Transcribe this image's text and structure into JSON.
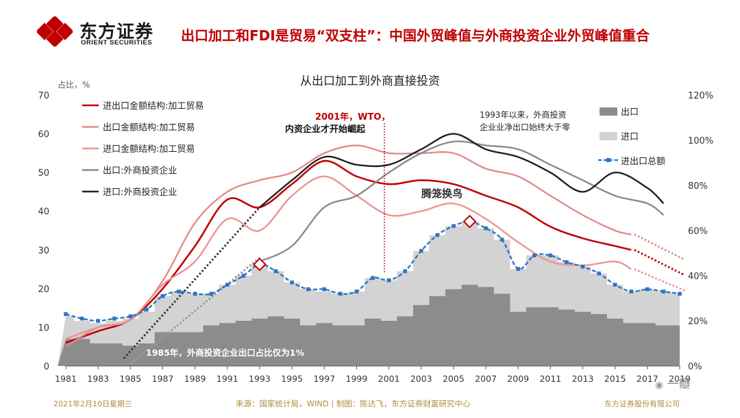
{
  "header": {
    "logo_cn": "东方证券",
    "logo_en": "ORIENT SECURITIES",
    "headline": "出口加工和FDI是贸易“双支柱”：中国外贸峰值与外商投资企业外贸峰值重合"
  },
  "footer": {
    "date": "2021年2月10日星期三",
    "source": "来源：国家统计局，WIND | 制图：陈达飞，东方证券财富研究中心",
    "company": "东方证券股份有限公司"
  },
  "watermark": "一瓣",
  "colors": {
    "brand_red": "#c00000",
    "import_export_processing": "#c00000",
    "export_processing": "#e28a8a",
    "import_processing": "#ec9393",
    "export_fie": "#8a8a8a",
    "import_fie": "#1f1f1f",
    "export_area": "#8c8c8c",
    "import_area": "#d3d3d3",
    "total_trade": "#2f74c4"
  },
  "chart_data": {
    "type": "line",
    "title": "从出口加工到外商直接投资",
    "ylabel_left": "占比，%",
    "ylim_left": [
      0,
      70
    ],
    "yticks_left": [
      "0",
      "10",
      "20",
      "30",
      "40",
      "50",
      "60",
      "70"
    ],
    "ylim_right": [
      0,
      1.2
    ],
    "yticks_right": [
      "0%",
      "20%",
      "40%",
      "60%",
      "80%",
      "100%",
      "120%"
    ],
    "xlim": [
      1981,
      2019
    ],
    "xticks": [
      "1981",
      "1983",
      "1985",
      "1987",
      "1989",
      "1991",
      "1993",
      "1995",
      "1997",
      "1999",
      "2001",
      "2003",
      "2005",
      "2007",
      "2009",
      "2011",
      "2013",
      "2015",
      "2017",
      "2019"
    ],
    "series": [
      {
        "name": "进出口金额结构:加工贸易",
        "axis": "left",
        "x": [
          1981,
          1983,
          1985,
          1987,
          1989,
          1991,
          1993,
          1995,
          1997,
          1999,
          2001,
          2003,
          2005,
          2007,
          2009,
          2011,
          2013,
          2015,
          2016
        ],
        "values": [
          6,
          9,
          12,
          20,
          31,
          43,
          41,
          47,
          53,
          49,
          47,
          48,
          47,
          44,
          41,
          36,
          33,
          31,
          30
        ]
      },
      {
        "name": "出口金额结构:加工贸易",
        "axis": "left",
        "x": [
          1981,
          1983,
          1985,
          1987,
          1989,
          1991,
          1993,
          1995,
          1997,
          1999,
          2001,
          2003,
          2005,
          2007,
          2009,
          2011,
          2013,
          2015,
          2016
        ],
        "values": [
          5,
          10,
          12,
          22,
          37,
          45,
          48,
          50,
          55,
          57,
          55,
          55,
          55,
          51,
          49,
          44,
          39,
          35,
          34
        ]
      },
      {
        "name": "进口金额结构:加工贸易",
        "axis": "left",
        "x": [
          1981,
          1983,
          1985,
          1987,
          1989,
          1991,
          1993,
          1995,
          1997,
          1999,
          2001,
          2003,
          2005,
          2007,
          2009,
          2011,
          2013,
          2015,
          2016
        ],
        "values": [
          7,
          10,
          12,
          21,
          27,
          38,
          35,
          44,
          49,
          44,
          39,
          40,
          42,
          38,
          32,
          27,
          26,
          27,
          25
        ]
      },
      {
        "name": "出口:外商投资企业",
        "axis": "left",
        "x": [
          1993,
          1995,
          1997,
          1999,
          2001,
          2003,
          2005,
          2007,
          2009,
          2011,
          2013,
          2015,
          2017,
          2018
        ],
        "values": [
          27,
          31,
          41,
          44,
          50,
          55,
          58,
          57,
          56,
          52,
          48,
          44,
          42,
          39
        ]
      },
      {
        "name": "进口:外商投资企业",
        "axis": "left",
        "x": [
          1993,
          1995,
          1997,
          1999,
          2001,
          2003,
          2005,
          2007,
          2009,
          2011,
          2013,
          2015,
          2017,
          2018
        ],
        "values": [
          41,
          48,
          54,
          52,
          52,
          56,
          60,
          56,
          54,
          50,
          45,
          50,
          46,
          42
        ]
      },
      {
        "name": "出口",
        "axis": "right",
        "type": "area",
        "x": [
          1981,
          1982,
          1983,
          1984,
          1985,
          1986,
          1987,
          1988,
          1989,
          1990,
          1991,
          1992,
          1993,
          1994,
          1995,
          1996,
          1997,
          1998,
          1999,
          2000,
          2001,
          2002,
          2003,
          2004,
          2005,
          2006,
          2007,
          2008,
          2009,
          2010,
          2011,
          2012,
          2013,
          2014,
          2015,
          2016,
          2017,
          2018,
          2019
        ],
        "values": [
          0.12,
          0.12,
          0.1,
          0.1,
          0.09,
          0.1,
          0.15,
          0.15,
          0.15,
          0.18,
          0.19,
          0.2,
          0.21,
          0.22,
          0.21,
          0.18,
          0.19,
          0.18,
          0.18,
          0.21,
          0.2,
          0.22,
          0.27,
          0.31,
          0.34,
          0.36,
          0.35,
          0.32,
          0.24,
          0.26,
          0.26,
          0.25,
          0.24,
          0.23,
          0.21,
          0.19,
          0.19,
          0.18,
          0.18
        ]
      },
      {
        "name": "进口",
        "axis": "right",
        "type": "area",
        "x": [
          1981,
          1982,
          1983,
          1984,
          1985,
          1986,
          1987,
          1988,
          1989,
          1990,
          1991,
          1992,
          1993,
          1994,
          1995,
          1996,
          1997,
          1998,
          1999,
          2000,
          2001,
          2002,
          2003,
          2004,
          2005,
          2006,
          2007,
          2008,
          2009,
          2010,
          2011,
          2012,
          2013,
          2014,
          2015,
          2016,
          2017,
          2018,
          2019
        ],
        "values": [
          0.22,
          0.2,
          0.19,
          0.2,
          0.21,
          0.24,
          0.31,
          0.33,
          0.32,
          0.32,
          0.36,
          0.4,
          0.45,
          0.42,
          0.37,
          0.34,
          0.33,
          0.32,
          0.33,
          0.39,
          0.38,
          0.42,
          0.51,
          0.58,
          0.62,
          0.64,
          0.61,
          0.56,
          0.43,
          0.49,
          0.49,
          0.46,
          0.44,
          0.41,
          0.36,
          0.33,
          0.34,
          0.33,
          0.32
        ]
      },
      {
        "name": "进出口总额",
        "axis": "right",
        "type": "line",
        "x": [
          1981,
          1982,
          1983,
          1984,
          1985,
          1986,
          1987,
          1988,
          1989,
          1990,
          1991,
          1992,
          1993,
          1994,
          1995,
          1996,
          1997,
          1998,
          1999,
          2000,
          2001,
          2002,
          2003,
          2004,
          2005,
          2006,
          2007,
          2008,
          2009,
          2010,
          2011,
          2012,
          2013,
          2014,
          2015,
          2016,
          2017,
          2018,
          2019
        ],
        "values": [
          0.23,
          0.21,
          0.2,
          0.21,
          0.22,
          0.25,
          0.31,
          0.33,
          0.32,
          0.32,
          0.36,
          0.4,
          0.45,
          0.42,
          0.37,
          0.34,
          0.34,
          0.32,
          0.33,
          0.39,
          0.38,
          0.42,
          0.51,
          0.58,
          0.62,
          0.64,
          0.61,
          0.56,
          0.43,
          0.49,
          0.49,
          0.46,
          0.44,
          0.41,
          0.36,
          0.33,
          0.34,
          0.33,
          0.32
        ]
      }
    ],
    "legend": {
      "placement": "top-left and top-right"
    },
    "annotations": [
      {
        "text_line1": "2001年，WTO，",
        "text_line2": "内资企业才开始崛起",
        "x": 2001
      },
      {
        "text_line1": "1993年以来，外商投资",
        "text_line2": "企业业净出口始终大于零"
      },
      {
        "text": "腾笼换鸟"
      },
      {
        "text": "1985年，外商投资企业出口占比仅为1%"
      }
    ],
    "highlight_years": [
      1993,
      2006
    ]
  }
}
